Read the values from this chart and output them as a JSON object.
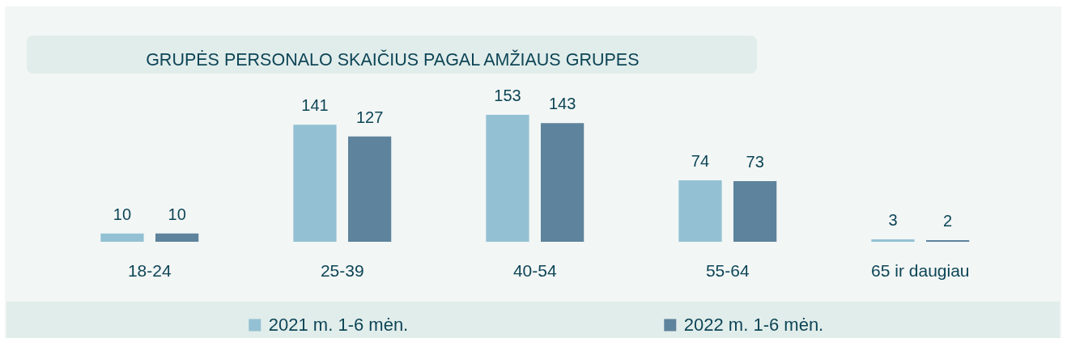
{
  "chart_data": {
    "type": "bar",
    "title": "GRUPĖS PERSONALO SKAIČIUS PAGAL AMŽIAUS GRUPES",
    "categories": [
      "18-24",
      "25-39",
      "40-54",
      "55-64",
      "65 ir daugiau"
    ],
    "series": [
      {
        "name": "2021 m. 1-6 mėn.",
        "color": "#93c1d3",
        "values": [
          10,
          141,
          153,
          74,
          3
        ]
      },
      {
        "name": "2022 m. 1-6 mėn.",
        "color": "#5e839c",
        "values": [
          10,
          127,
          143,
          73,
          2
        ]
      }
    ],
    "data_labels": true,
    "legend": "bottom"
  }
}
